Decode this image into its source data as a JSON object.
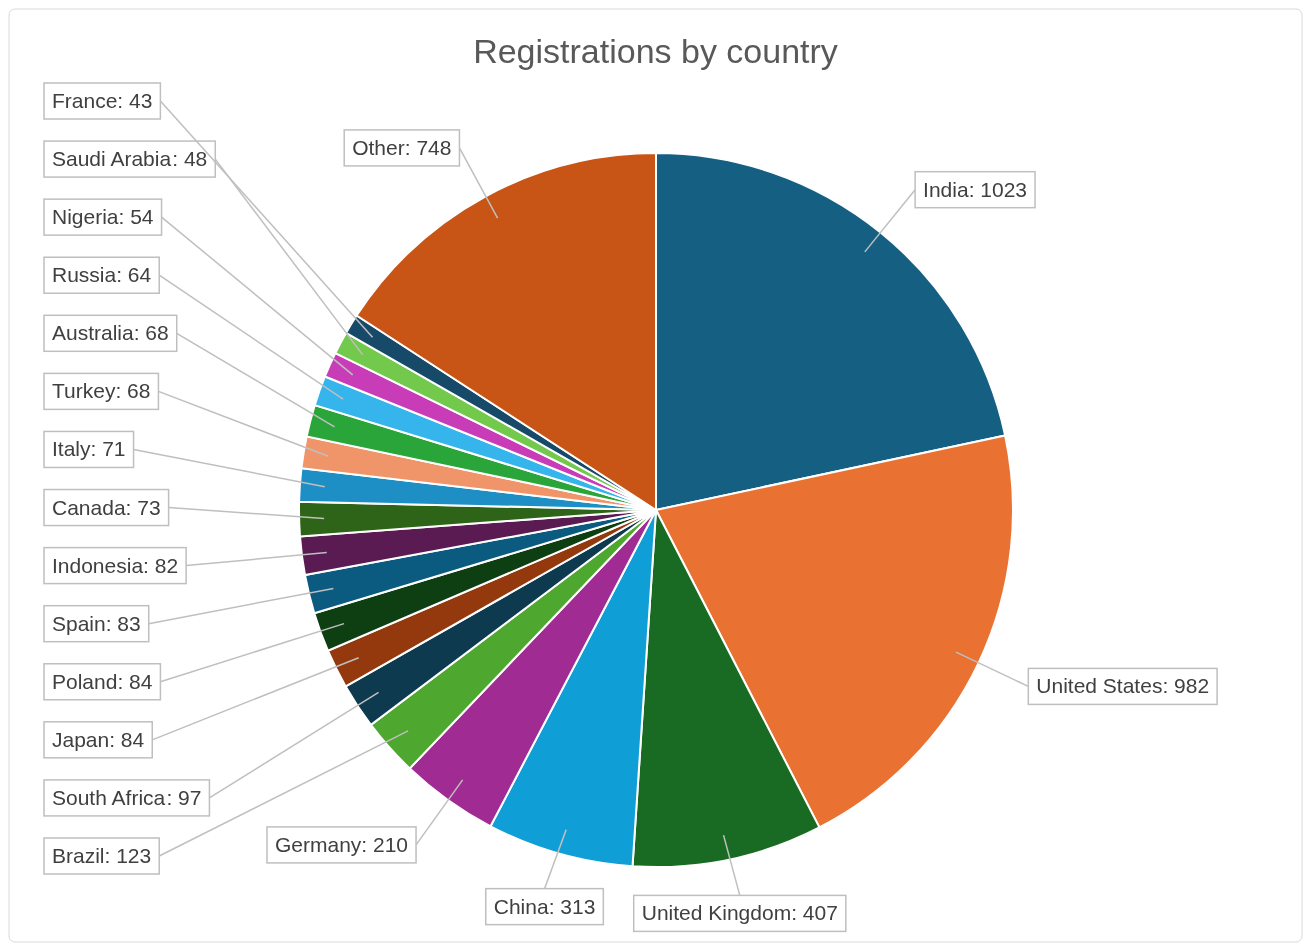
{
  "chart_data": {
    "type": "pie",
    "title": "Registrations by country",
    "categories": [
      "India",
      "United States",
      "United Kingdom",
      "China",
      "Germany",
      "Brazil",
      "South Africa",
      "Japan",
      "Poland",
      "Spain",
      "Indonesia",
      "Canada",
      "Italy",
      "Turkey",
      "Australia",
      "Russia",
      "Nigeria",
      "Saudi Arabia",
      "France",
      "Other"
    ],
    "values": [
      1023,
      982,
      407,
      313,
      210,
      123,
      97,
      84,
      84,
      83,
      82,
      73,
      71,
      68,
      68,
      64,
      54,
      48,
      43,
      748
    ],
    "value_labels": [
      ": 1023",
      ": 982",
      ": 407",
      ": 313",
      ": 210",
      ": 123",
      ": 97",
      ": 84",
      ": 84",
      ": 83",
      ": 82",
      ": 73",
      ": 71",
      ": 68",
      ": 68",
      ": 64",
      ": 54",
      ": 48",
      ": 43",
      ": 748"
    ],
    "colors": [
      "#156082",
      "#e97132",
      "#196b24",
      "#0f9ed5",
      "#a02b93",
      "#4ea72e",
      "#0d3a4f",
      "#94390e",
      "#0e3f12",
      "#0b5a80",
      "#5a1a52",
      "#2d6417",
      "#1e8fc4",
      "#f0956a",
      "#2aa53a",
      "#35b5ec",
      "#c83cb8",
      "#72c94b",
      "#174a68",
      "#c85416"
    ]
  }
}
